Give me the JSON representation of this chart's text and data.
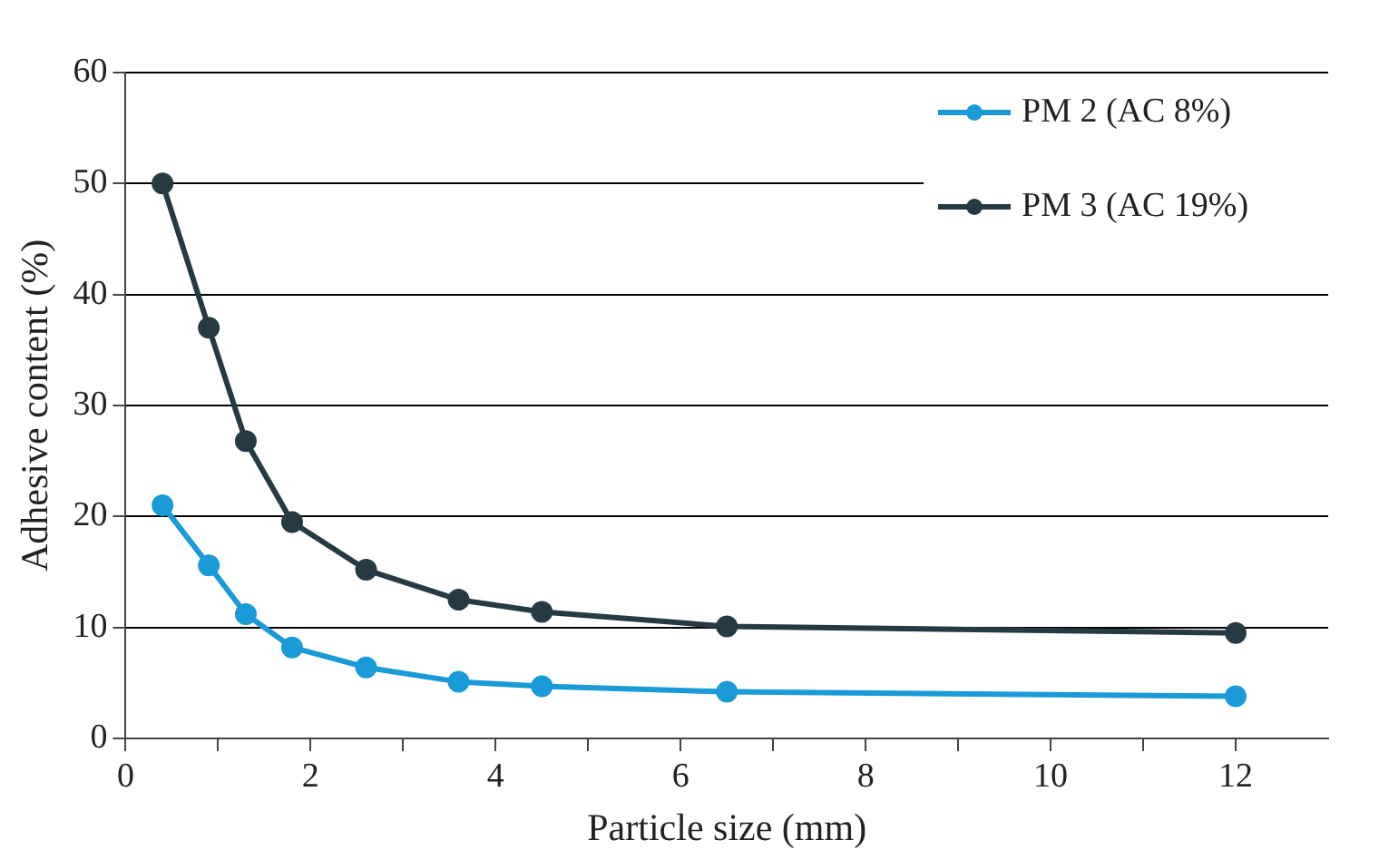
{
  "chart_data": {
    "type": "line",
    "xlabel": "Particle size (mm)",
    "ylabel": "Adhesive content (%)",
    "x": [
      0.4,
      0.9,
      1.3,
      1.8,
      2.6,
      3.6,
      4.5,
      6.5,
      12
    ],
    "series": [
      {
        "name": "PM 2 (AC 8%)",
        "color": "#1a9ad6",
        "values": [
          21,
          15.6,
          11.2,
          8.2,
          6.4,
          5.1,
          4.7,
          4.2,
          3.8
        ]
      },
      {
        "name": "PM 3 (AC 19%)",
        "color": "#263a44",
        "values": [
          50,
          37,
          26.8,
          19.5,
          15.2,
          12.5,
          11.4,
          10.1,
          9.5
        ]
      }
    ],
    "xlim": [
      0,
      13
    ],
    "xticks": [
      0,
      {
        "value": 1,
        "label": null
      },
      2,
      {
        "value": 3,
        "label": null
      },
      4,
      {
        "value": 5,
        "label": null
      },
      6,
      {
        "value": 7,
        "label": null
      },
      8,
      {
        "value": 9,
        "label": null
      },
      10,
      {
        "value": 11,
        "label": null
      },
      12
    ],
    "ylim": [
      0,
      60
    ],
    "yticks": [
      0,
      10,
      20,
      30,
      40,
      50,
      60
    ],
    "grid": "y",
    "legend": "top right",
    "marker": "circle",
    "line_style": "solid"
  }
}
